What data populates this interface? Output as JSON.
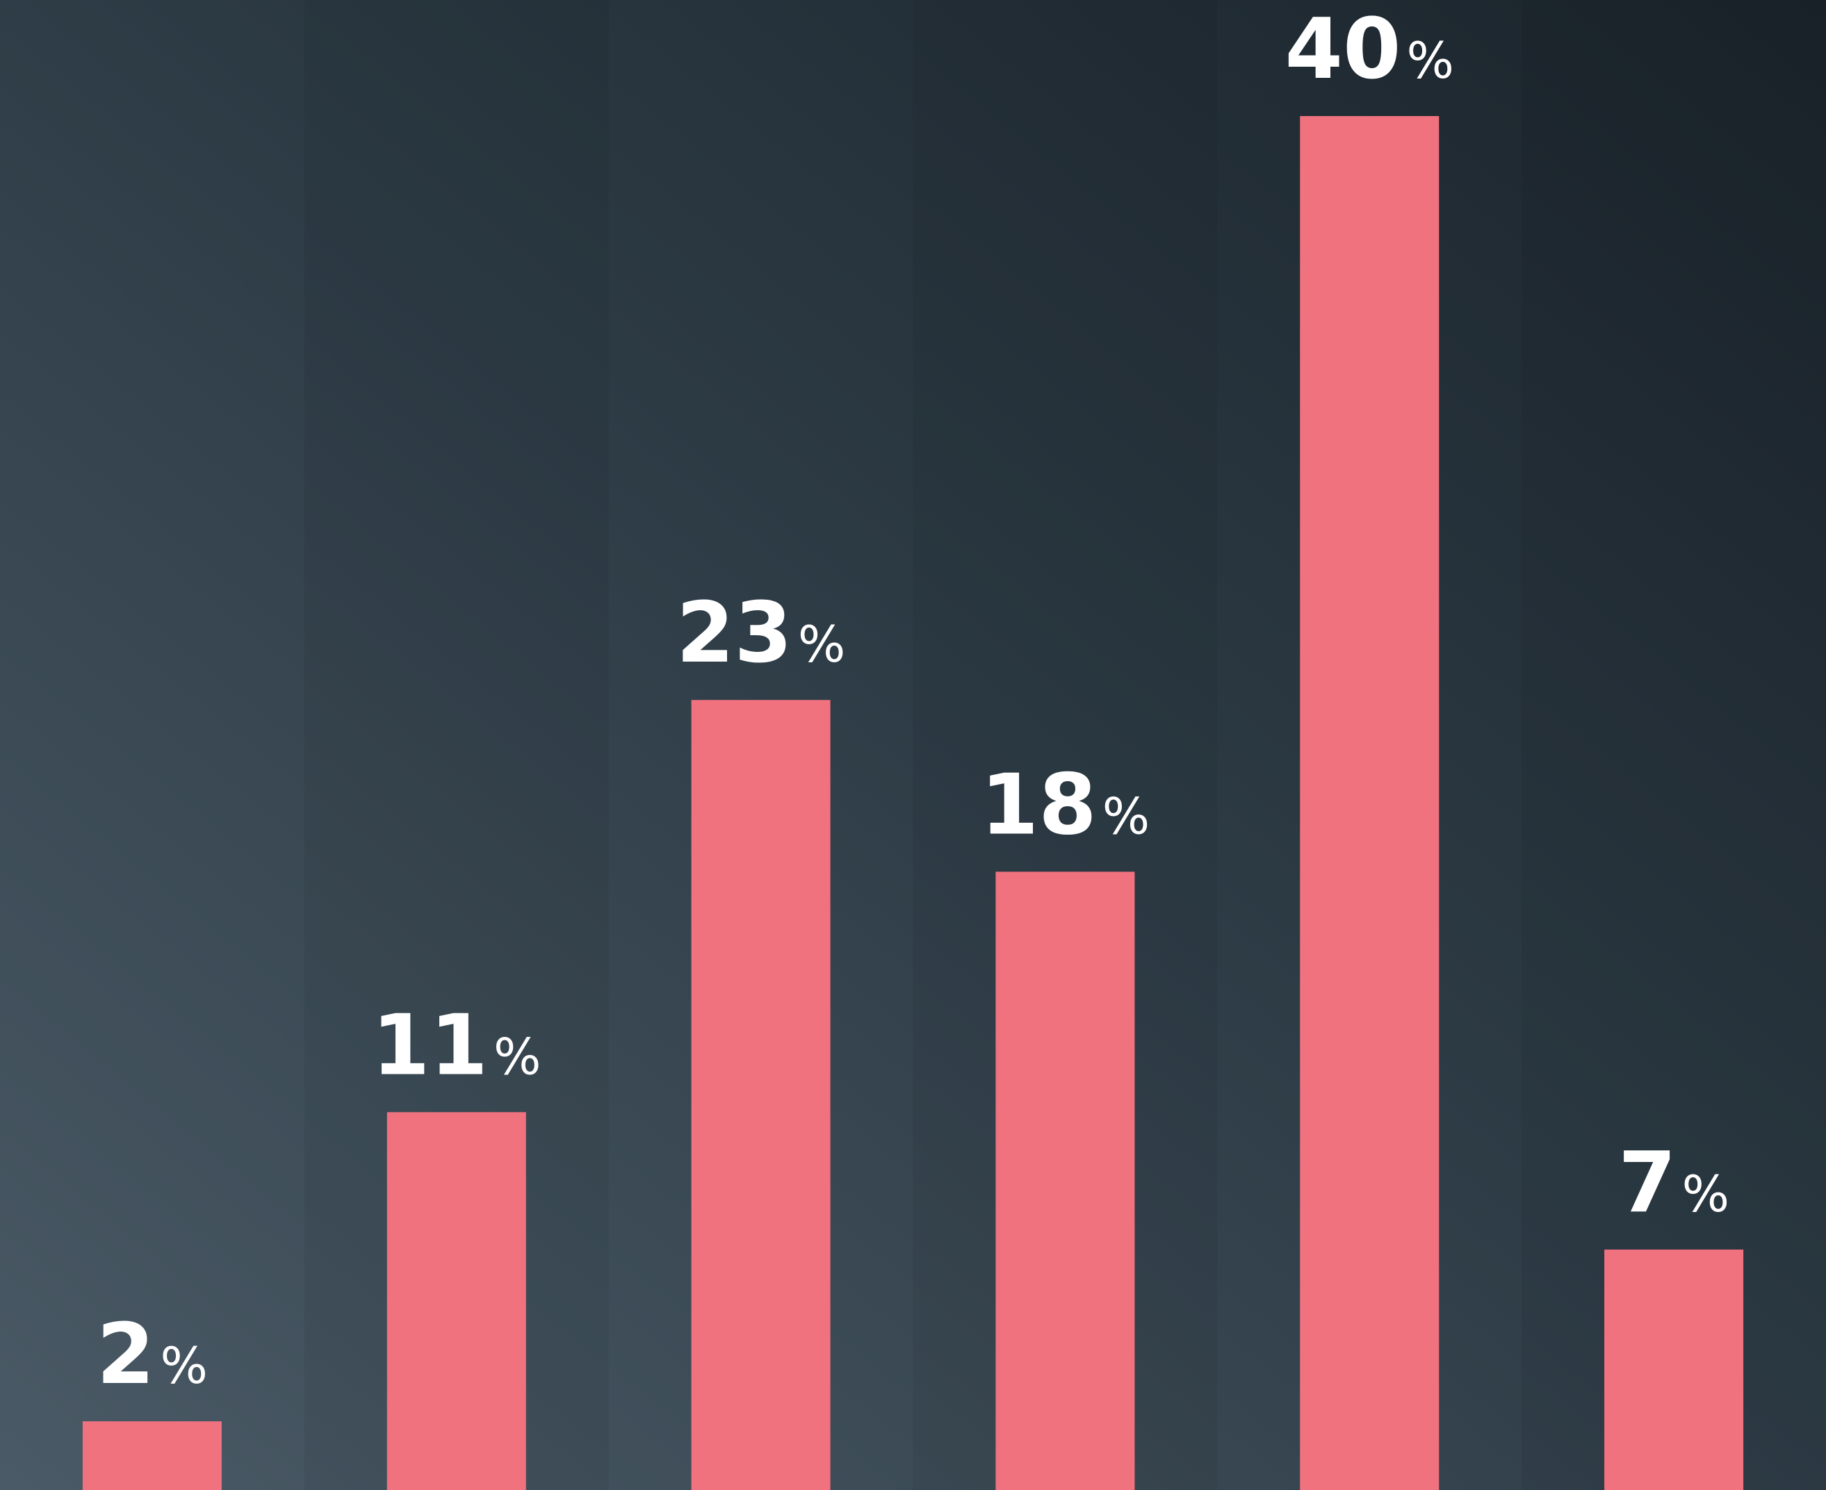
{
  "colors": {
    "bar": "#f0727f",
    "label": "#ffffff",
    "background_light": "#4a5a66",
    "background_dark": "#1a232a"
  },
  "chart_data": {
    "type": "bar",
    "title": "",
    "xlabel": "",
    "ylabel": "",
    "categories": [
      "",
      "",
      "",
      "",
      "",
      ""
    ],
    "values": [
      2,
      11,
      23,
      18,
      40,
      7
    ],
    "value_suffix": "%",
    "data_labels": [
      "2",
      "11",
      "23",
      "18",
      "40",
      "7"
    ],
    "ylim": [
      0,
      40
    ],
    "grid": false,
    "legend": "none"
  }
}
